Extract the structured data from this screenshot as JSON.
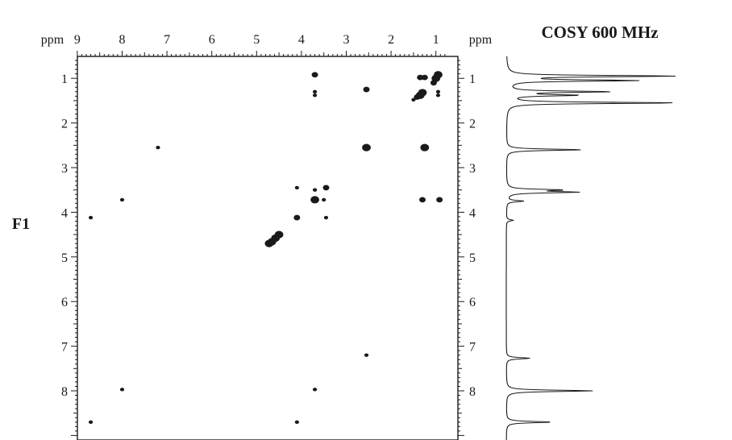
{
  "chart_data": {
    "type": "scatter",
    "title": "COSY 600 MHz",
    "ylabel": "F1",
    "x_unit": "ppm",
    "y_unit": "ppm",
    "xlim": [
      9,
      0.7
    ],
    "ylim": [
      0.6,
      9.0
    ],
    "x_ticks": [
      9,
      8,
      7,
      6,
      5,
      4,
      3,
      2,
      1
    ],
    "y_ticks": [
      1,
      2,
      3,
      4,
      5,
      6,
      7,
      8
    ],
    "grid": false,
    "legend": "none",
    "cross_peaks": [
      {
        "x": 3.7,
        "y": 0.92,
        "size": "medium"
      },
      {
        "x": 3.7,
        "y": 1.3,
        "size": "small"
      },
      {
        "x": 3.7,
        "y": 1.38,
        "size": "small"
      },
      {
        "x": 2.55,
        "y": 1.25,
        "size": "medium"
      },
      {
        "x": 1.35,
        "y": 0.98,
        "size": "medium"
      },
      {
        "x": 1.25,
        "y": 0.98,
        "size": "medium"
      },
      {
        "x": 0.95,
        "y": 0.92,
        "size": "large"
      },
      {
        "x": 1.0,
        "y": 1.0,
        "size": "large"
      },
      {
        "x": 1.05,
        "y": 1.1,
        "size": "medium"
      },
      {
        "x": 1.3,
        "y": 1.32,
        "size": "large"
      },
      {
        "x": 1.35,
        "y": 1.38,
        "size": "large"
      },
      {
        "x": 1.42,
        "y": 1.42,
        "size": "medium"
      },
      {
        "x": 1.5,
        "y": 1.48,
        "size": "small"
      },
      {
        "x": 0.95,
        "y": 1.3,
        "size": "small"
      },
      {
        "x": 0.95,
        "y": 1.38,
        "size": "small"
      },
      {
        "x": 7.2,
        "y": 2.55,
        "size": "small"
      },
      {
        "x": 2.55,
        "y": 2.55,
        "size": "large"
      },
      {
        "x": 1.25,
        "y": 2.55,
        "size": "large"
      },
      {
        "x": 4.1,
        "y": 3.45,
        "size": "small"
      },
      {
        "x": 3.45,
        "y": 3.45,
        "size": "medium"
      },
      {
        "x": 3.7,
        "y": 3.5,
        "size": "small"
      },
      {
        "x": 8.0,
        "y": 3.72,
        "size": "small"
      },
      {
        "x": 3.7,
        "y": 3.72,
        "size": "large"
      },
      {
        "x": 3.5,
        "y": 3.72,
        "size": "small"
      },
      {
        "x": 1.3,
        "y": 3.72,
        "size": "medium"
      },
      {
        "x": 0.92,
        "y": 3.72,
        "size": "medium"
      },
      {
        "x": 8.7,
        "y": 4.12,
        "size": "small"
      },
      {
        "x": 4.1,
        "y": 4.12,
        "size": "medium"
      },
      {
        "x": 3.45,
        "y": 4.12,
        "size": "small"
      },
      {
        "x": 4.5,
        "y": 4.5,
        "size": "large"
      },
      {
        "x": 4.58,
        "y": 4.58,
        "size": "large"
      },
      {
        "x": 4.66,
        "y": 4.66,
        "size": "large"
      },
      {
        "x": 4.72,
        "y": 4.7,
        "size": "large"
      },
      {
        "x": 2.55,
        "y": 7.2,
        "size": "small"
      },
      {
        "x": 8.0,
        "y": 7.97,
        "size": "small"
      },
      {
        "x": 3.7,
        "y": 7.97,
        "size": "small"
      },
      {
        "x": 8.7,
        "y": 8.7,
        "size": "small"
      },
      {
        "x": 4.1,
        "y": 8.7,
        "size": "small"
      }
    ],
    "projection_f1": [
      {
        "ppm": 0.95,
        "height": 1.0
      },
      {
        "ppm": 1.05,
        "height": 0.75
      },
      {
        "ppm": 1.3,
        "height": 0.6
      },
      {
        "ppm": 1.38,
        "height": 0.4
      },
      {
        "ppm": 1.55,
        "height": 1.0
      },
      {
        "ppm": 2.6,
        "height": 0.45
      },
      {
        "ppm": 3.5,
        "height": 0.3
      },
      {
        "ppm": 3.55,
        "height": 0.4
      },
      {
        "ppm": 3.75,
        "height": 0.1
      },
      {
        "ppm": 4.18,
        "height": 0.04
      },
      {
        "ppm": 7.27,
        "height": 0.14
      },
      {
        "ppm": 8.0,
        "height": 0.51
      },
      {
        "ppm": 8.7,
        "height": 0.27
      }
    ]
  }
}
